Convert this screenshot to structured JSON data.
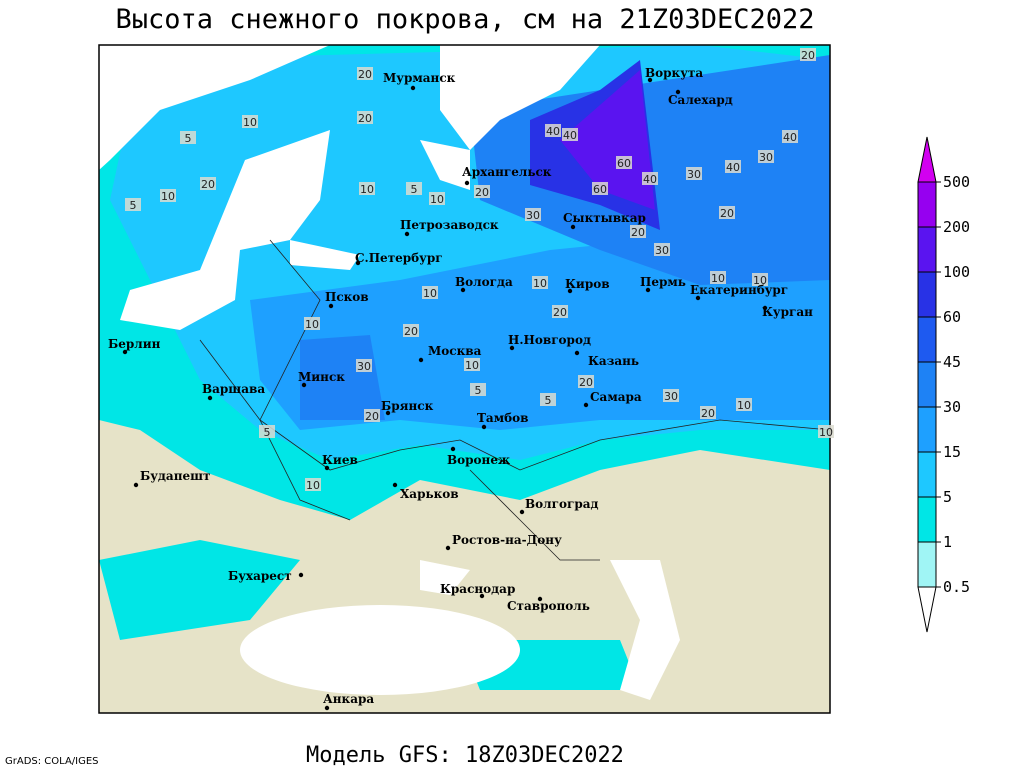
{
  "title": "Высота снежного покрова, см на 21Z03DEC2022",
  "footer": "Модель GFS: 18Z03DEC2022",
  "credit": "GrADS: COLA/IGES",
  "colorbar": {
    "levels": [
      0.5,
      1,
      5,
      15,
      30,
      45,
      60,
      100,
      200,
      500
    ],
    "colors": [
      "#ffffff",
      "#a0f5f5",
      "#00e6e6",
      "#1ec8ff",
      "#1ea0ff",
      "#1e82f5",
      "#1e5af0",
      "#2832e6",
      "#5a14f0",
      "#9600f0",
      "#d200f0"
    ]
  },
  "map": {
    "land_color": "#e6e3c8",
    "cities": [
      "Мурманск",
      "Воркута",
      "Салехард",
      "Архангельск",
      "Петрозаводск",
      "С.Петербург",
      "Сыктывкар",
      "Вологда",
      "Киров",
      "Пермь",
      "Екатеринбург",
      "Курган",
      "Псков",
      "Берлин",
      "Н.Новгород",
      "Москва",
      "Казань",
      "Минск",
      "Варшава",
      "Самара",
      "Брянск",
      "Тамбов",
      "Киев",
      "Воронеж",
      "Будапешт",
      "Харьков",
      "Волгоград",
      "Ростов-на-Дону",
      "Бухарест",
      "Краснодар",
      "Ставрополь",
      "Анкара"
    ],
    "contour_labels": [
      20,
      20,
      10,
      5,
      20,
      10,
      5,
      20,
      10,
      5,
      10,
      40,
      40,
      60,
      60,
      40,
      30,
      40,
      30,
      40,
      30,
      20,
      20,
      30,
      20,
      10,
      10,
      10,
      20,
      10,
      30,
      20,
      5,
      10,
      20,
      20,
      10,
      5,
      10,
      30,
      20,
      10,
      5,
      10
    ]
  }
}
